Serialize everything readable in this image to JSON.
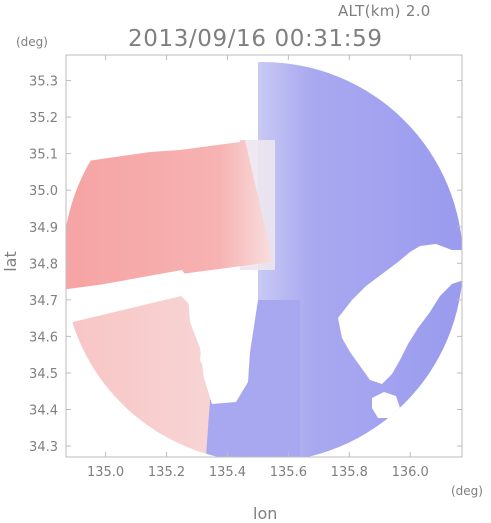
{
  "header": {
    "alt_label": "ALT(km) 2.0",
    "timestamp": "2013/09/16 00:31:59"
  },
  "axes": {
    "y_unit": "(deg)",
    "x_unit": "(deg)",
    "x_label": "lon",
    "y_label": "lat",
    "x_ticks": [
      "135.0",
      "135.2",
      "135.4",
      "135.6",
      "135.8",
      "136.0"
    ],
    "y_ticks": [
      "35.3",
      "35.2",
      "35.1",
      "35.0",
      "34.9",
      "34.8",
      "34.7",
      "34.6",
      "34.5",
      "34.4",
      "34.3"
    ]
  },
  "map": {
    "type": "radar-doppler-velocity",
    "altitude_km": 2.0,
    "lon_range": [
      134.87,
      136.17
    ],
    "lat_range": [
      34.27,
      35.37
    ],
    "colors": {
      "approaching": "#8f8ff0",
      "receding": "#f7a0a0",
      "near_zero": "#f3eef3",
      "frame": "#bdbdbd"
    }
  }
}
